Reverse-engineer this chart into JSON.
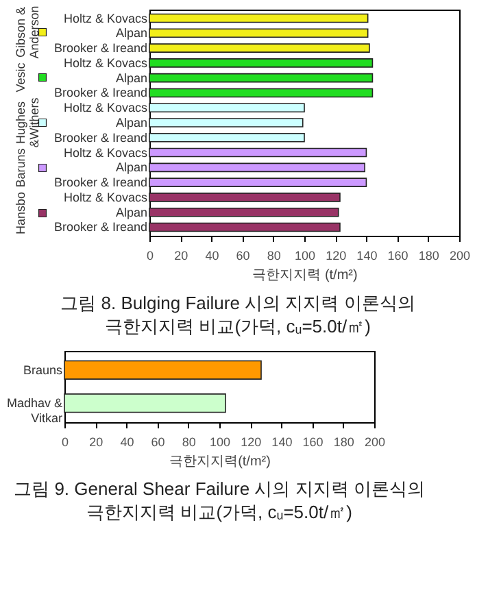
{
  "chart_data": [
    {
      "type": "bar",
      "orientation": "horizontal",
      "title": "그림 8.  Bulging Failure 시의 지지력 이론식의\n극한지지력 비교(가덕, cᵤ=5.0t/㎡)",
      "xlabel": "극한지지력 (t/m²)",
      "categories": [
        "Holtz & Kovacs",
        "Alpan",
        "Brooker & Ireand",
        "Holtz & Kovacs",
        "Alpan",
        "Brooker & Ireand",
        "Holtz & Kovacs",
        "Alpan",
        "Brooker & Ireand",
        "Holtz & Kovacs",
        "Alpan",
        "Brooker & Ireand",
        "Holtz & Kovacs",
        "Alpan",
        "Brooker & Ireand"
      ],
      "series": [
        {
          "name": "Gibson &\nAnderson",
          "color": "#f2ee1a",
          "values": [
            141,
            141,
            142,
            null,
            null,
            null,
            null,
            null,
            null,
            null,
            null,
            null,
            null,
            null,
            null
          ]
        },
        {
          "name": "Vesic",
          "color": "#22dd22",
          "values": [
            null,
            null,
            null,
            144,
            144,
            144,
            null,
            null,
            null,
            null,
            null,
            null,
            null,
            null,
            null
          ]
        },
        {
          "name": "Hughes\n&Withers",
          "color": "#ccffff",
          "values": [
            null,
            null,
            null,
            null,
            null,
            null,
            100,
            99,
            100,
            null,
            null,
            null,
            null,
            null,
            null
          ]
        },
        {
          "name": "Baruns",
          "color": "#cc99ff",
          "values": [
            null,
            null,
            null,
            null,
            null,
            null,
            null,
            null,
            null,
            140,
            139,
            140,
            null,
            null,
            null
          ]
        },
        {
          "name": "Hansbo",
          "color": "#993366",
          "values": [
            null,
            null,
            null,
            null,
            null,
            null,
            null,
            null,
            null,
            null,
            null,
            null,
            123,
            122,
            123
          ]
        }
      ],
      "xlim": [
        0,
        200
      ],
      "xticks": [
        0,
        20,
        40,
        60,
        80,
        100,
        120,
        140,
        160,
        180,
        200
      ],
      "legend": "left"
    },
    {
      "type": "bar",
      "orientation": "horizontal",
      "title": "그림 9. General Shear Failure 시의 지지력 이론식의\n극한지지력 비교(가덕, cᵤ=5.0t/㎡)",
      "xlabel": "극한지지력(t/m²)",
      "categories": [
        "Brauns",
        "Madhav &\nVitkar"
      ],
      "values": [
        127,
        104
      ],
      "colors": [
        "#ff9900",
        "#ccffcc"
      ],
      "xlim": [
        0,
        200
      ],
      "xticks": [
        0,
        20,
        40,
        60,
        80,
        100,
        120,
        140,
        160,
        180,
        200
      ]
    }
  ]
}
